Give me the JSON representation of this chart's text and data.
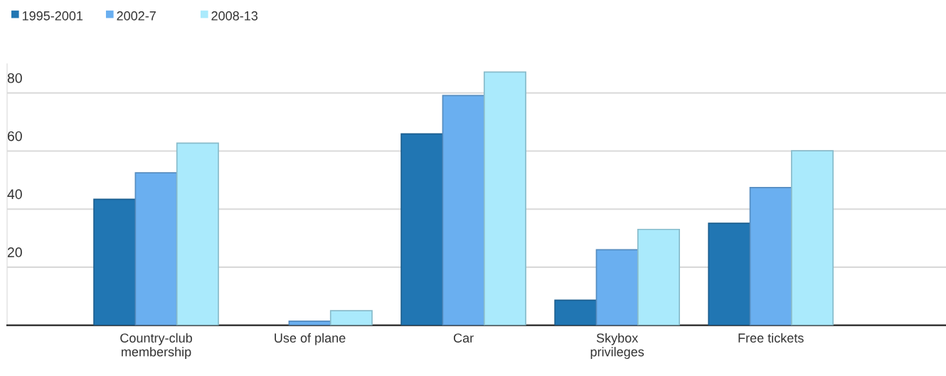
{
  "chart_data": {
    "type": "bar",
    "categories": [
      "Country-club\nmembership",
      "Use of plane",
      "Car",
      "Skybox\nprivileges",
      "Free tickets"
    ],
    "series": [
      {
        "name": "1995-2001",
        "color": "#2176b3",
        "values": [
          43.4,
          null,
          65.9,
          8.6,
          35.1
        ]
      },
      {
        "name": "2002-7",
        "color": "#6aaff0",
        "values": [
          52.5,
          1.4,
          79.1,
          26.0,
          47.4
        ]
      },
      {
        "name": "2008-13",
        "color": "#aaeafc",
        "values": [
          62.7,
          5.0,
          87.2,
          33.0,
          60.1
        ]
      }
    ],
    "ylim": [
      0,
      90
    ],
    "yticks": [
      20,
      40,
      60,
      80
    ],
    "grid": "y",
    "legend": "top left"
  }
}
